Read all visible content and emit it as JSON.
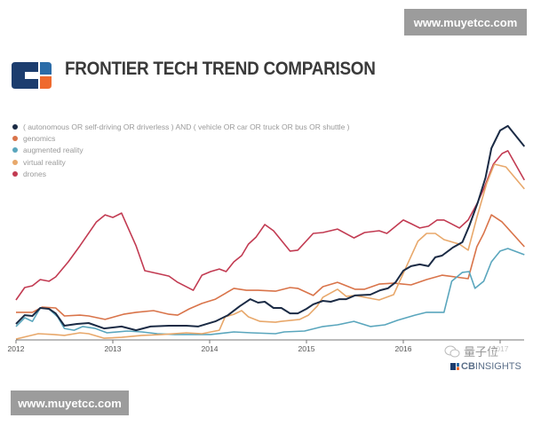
{
  "watermark_top": "www.muyetcc.com",
  "watermark_bottom": "www.muyetcc.com",
  "watermark_cn": "量子位",
  "brand": {
    "cb": "CB",
    "insights": "INSIGHTS"
  },
  "chart_data": {
    "type": "line",
    "title": "FRONTIER TECH TREND COMPARISON",
    "xlabel": "",
    "ylabel": "",
    "xlim": [
      2012,
      2017.25
    ],
    "ylim": [
      0,
      100
    ],
    "x_ticks": [
      "2012",
      "2013",
      "2014",
      "2015",
      "2016",
      "2017"
    ],
    "grid": false,
    "legend_position": "top-left",
    "series": [
      {
        "name": "( autonomous OR self-driving OR driverless ) AND ( vehicle OR car OR truck OR bus OR shuttle )",
        "color": "#1b2b45",
        "points": [
          [
            2012.0,
            7.4
          ],
          [
            2012.09,
            11.5
          ],
          [
            2012.17,
            11.1
          ],
          [
            2012.25,
            14.8
          ],
          [
            2012.34,
            14.4
          ],
          [
            2012.41,
            12.3
          ],
          [
            2012.5,
            6.6
          ],
          [
            2012.63,
            7.4
          ],
          [
            2012.75,
            7.8
          ],
          [
            2012.91,
            5.3
          ],
          [
            2013.09,
            6.2
          ],
          [
            2013.24,
            4.5
          ],
          [
            2013.39,
            6.2
          ],
          [
            2013.58,
            6.6
          ],
          [
            2013.76,
            6.6
          ],
          [
            2013.88,
            6.2
          ],
          [
            2014.06,
            8.6
          ],
          [
            2014.19,
            11.5
          ],
          [
            2014.31,
            15.6
          ],
          [
            2014.42,
            18.9
          ],
          [
            2014.5,
            17.3
          ],
          [
            2014.57,
            17.7
          ],
          [
            2014.66,
            14.8
          ],
          [
            2014.74,
            14.8
          ],
          [
            2014.83,
            12.3
          ],
          [
            2014.91,
            12.3
          ],
          [
            2015.0,
            14.4
          ],
          [
            2015.07,
            16.5
          ],
          [
            2015.17,
            18.1
          ],
          [
            2015.25,
            17.7
          ],
          [
            2015.34,
            18.9
          ],
          [
            2015.41,
            18.9
          ],
          [
            2015.5,
            20.6
          ],
          [
            2015.66,
            21.0
          ],
          [
            2015.76,
            23.0
          ],
          [
            2015.84,
            23.9
          ],
          [
            2015.92,
            26.7
          ],
          [
            2016.0,
            32.1
          ],
          [
            2016.08,
            34.2
          ],
          [
            2016.17,
            35.0
          ],
          [
            2016.26,
            34.2
          ],
          [
            2016.33,
            38.3
          ],
          [
            2016.4,
            39.1
          ],
          [
            2016.51,
            42.8
          ],
          [
            2016.61,
            45.3
          ],
          [
            2016.68,
            52.7
          ],
          [
            2016.77,
            63.8
          ],
          [
            2016.85,
            75.3
          ],
          [
            2016.91,
            88.9
          ],
          [
            2017.0,
            97.1
          ],
          [
            2017.08,
            99.2
          ],
          [
            2017.25,
            89.7
          ]
        ]
      },
      {
        "name": "genomics",
        "color": "#d9744a",
        "points": [
          [
            2012.0,
            12.8
          ],
          [
            2012.17,
            12.8
          ],
          [
            2012.27,
            15.2
          ],
          [
            2012.41,
            14.8
          ],
          [
            2012.5,
            11.1
          ],
          [
            2012.66,
            11.5
          ],
          [
            2012.75,
            11.1
          ],
          [
            2012.92,
            9.5
          ],
          [
            2013.11,
            11.9
          ],
          [
            2013.24,
            12.8
          ],
          [
            2013.42,
            13.6
          ],
          [
            2013.58,
            11.9
          ],
          [
            2013.67,
            11.5
          ],
          [
            2013.79,
            14.4
          ],
          [
            2013.92,
            16.9
          ],
          [
            2014.06,
            18.9
          ],
          [
            2014.25,
            23.9
          ],
          [
            2014.38,
            23.0
          ],
          [
            2014.5,
            23.0
          ],
          [
            2014.68,
            22.6
          ],
          [
            2014.83,
            24.3
          ],
          [
            2014.91,
            23.9
          ],
          [
            2015.07,
            20.6
          ],
          [
            2015.17,
            24.7
          ],
          [
            2015.32,
            26.7
          ],
          [
            2015.5,
            23.5
          ],
          [
            2015.6,
            23.5
          ],
          [
            2015.75,
            25.9
          ],
          [
            2015.9,
            26.3
          ],
          [
            2016.08,
            25.5
          ],
          [
            2016.24,
            28.0
          ],
          [
            2016.4,
            30.0
          ],
          [
            2016.67,
            28.4
          ],
          [
            2016.76,
            43.2
          ],
          [
            2016.83,
            49.4
          ],
          [
            2016.91,
            58.0
          ],
          [
            2017.02,
            54.7
          ],
          [
            2017.25,
            43.2
          ]
        ]
      },
      {
        "name": "augmented reality",
        "color": "#5aa6bd",
        "points": [
          [
            2012.0,
            6.2
          ],
          [
            2012.09,
            10.3
          ],
          [
            2012.17,
            8.6
          ],
          [
            2012.25,
            14.8
          ],
          [
            2012.34,
            14.4
          ],
          [
            2012.43,
            10.7
          ],
          [
            2012.5,
            5.3
          ],
          [
            2012.6,
            4.5
          ],
          [
            2012.69,
            6.2
          ],
          [
            2012.82,
            5.3
          ],
          [
            2012.94,
            3.3
          ],
          [
            2013.15,
            4.1
          ],
          [
            2013.3,
            3.7
          ],
          [
            2013.46,
            2.9
          ],
          [
            2013.64,
            2.5
          ],
          [
            2013.83,
            2.5
          ],
          [
            2014.01,
            2.5
          ],
          [
            2014.25,
            3.7
          ],
          [
            2014.43,
            3.3
          ],
          [
            2014.68,
            2.9
          ],
          [
            2014.77,
            3.7
          ],
          [
            2014.98,
            4.1
          ],
          [
            2015.17,
            6.2
          ],
          [
            2015.32,
            7.0
          ],
          [
            2015.49,
            8.6
          ],
          [
            2015.66,
            6.2
          ],
          [
            2015.81,
            7.0
          ],
          [
            2015.94,
            9.1
          ],
          [
            2016.12,
            11.5
          ],
          [
            2016.24,
            12.8
          ],
          [
            2016.42,
            12.8
          ],
          [
            2016.5,
            27.2
          ],
          [
            2016.61,
            31.3
          ],
          [
            2016.68,
            31.7
          ],
          [
            2016.74,
            23.9
          ],
          [
            2016.83,
            27.2
          ],
          [
            2016.91,
            36.2
          ],
          [
            2017.0,
            41.2
          ],
          [
            2017.08,
            42.4
          ],
          [
            2017.25,
            39.5
          ]
        ]
      },
      {
        "name": "virtual reality",
        "color": "#e8a86b",
        "points": [
          [
            2012.0,
            0.4
          ],
          [
            2012.23,
            2.9
          ],
          [
            2012.39,
            2.5
          ],
          [
            2012.5,
            2.1
          ],
          [
            2012.66,
            3.3
          ],
          [
            2012.75,
            2.9
          ],
          [
            2012.91,
            0.8
          ],
          [
            2013.09,
            1.2
          ],
          [
            2013.3,
            2.1
          ],
          [
            2013.51,
            2.5
          ],
          [
            2013.76,
            3.3
          ],
          [
            2013.92,
            2.9
          ],
          [
            2014.1,
            4.5
          ],
          [
            2014.16,
            10.7
          ],
          [
            2014.25,
            11.9
          ],
          [
            2014.33,
            13.6
          ],
          [
            2014.4,
            10.7
          ],
          [
            2014.52,
            8.6
          ],
          [
            2014.68,
            8.2
          ],
          [
            2014.74,
            8.6
          ],
          [
            2014.93,
            9.5
          ],
          [
            2015.02,
            11.5
          ],
          [
            2015.11,
            15.6
          ],
          [
            2015.17,
            19.8
          ],
          [
            2015.32,
            23.5
          ],
          [
            2015.41,
            20.2
          ],
          [
            2015.5,
            20.6
          ],
          [
            2015.75,
            18.5
          ],
          [
            2015.9,
            21.0
          ],
          [
            2016.0,
            30.9
          ],
          [
            2016.15,
            45.7
          ],
          [
            2016.24,
            49.4
          ],
          [
            2016.33,
            49.4
          ],
          [
            2016.42,
            46.5
          ],
          [
            2016.58,
            44.4
          ],
          [
            2016.67,
            41.6
          ],
          [
            2016.76,
            56.8
          ],
          [
            2016.86,
            72.4
          ],
          [
            2016.94,
            81.5
          ],
          [
            2017.06,
            80.2
          ],
          [
            2017.25,
            70.0
          ]
        ]
      },
      {
        "name": "drones",
        "color": "#c23b52",
        "points": [
          [
            2012.0,
            18.5
          ],
          [
            2012.09,
            24.3
          ],
          [
            2012.17,
            25.1
          ],
          [
            2012.25,
            28.0
          ],
          [
            2012.34,
            27.2
          ],
          [
            2012.41,
            29.2
          ],
          [
            2012.54,
            36.2
          ],
          [
            2012.66,
            43.6
          ],
          [
            2012.83,
            54.7
          ],
          [
            2012.92,
            58.0
          ],
          [
            2013.0,
            56.8
          ],
          [
            2013.09,
            58.8
          ],
          [
            2013.24,
            43.6
          ],
          [
            2013.33,
            32.1
          ],
          [
            2013.49,
            30.5
          ],
          [
            2013.58,
            29.6
          ],
          [
            2013.67,
            26.7
          ],
          [
            2013.83,
            23.0
          ],
          [
            2013.92,
            30.0
          ],
          [
            2014.01,
            31.7
          ],
          [
            2014.1,
            32.9
          ],
          [
            2014.17,
            31.7
          ],
          [
            2014.25,
            36.2
          ],
          [
            2014.33,
            39.1
          ],
          [
            2014.4,
            44.4
          ],
          [
            2014.48,
            47.7
          ],
          [
            2014.57,
            53.5
          ],
          [
            2014.66,
            50.6
          ],
          [
            2014.83,
            41.2
          ],
          [
            2014.91,
            41.6
          ],
          [
            2015.07,
            49.4
          ],
          [
            2015.17,
            49.8
          ],
          [
            2015.32,
            51.4
          ],
          [
            2015.49,
            47.3
          ],
          [
            2015.6,
            49.8
          ],
          [
            2015.75,
            50.6
          ],
          [
            2015.83,
            49.4
          ],
          [
            2016.0,
            55.6
          ],
          [
            2016.08,
            53.9
          ],
          [
            2016.17,
            51.9
          ],
          [
            2016.26,
            52.7
          ],
          [
            2016.35,
            55.6
          ],
          [
            2016.42,
            55.6
          ],
          [
            2016.58,
            51.9
          ],
          [
            2016.67,
            55.6
          ],
          [
            2016.76,
            63.0
          ],
          [
            2016.83,
            70.0
          ],
          [
            2016.93,
            81.5
          ],
          [
            2017.02,
            86.4
          ],
          [
            2017.08,
            87.7
          ],
          [
            2017.25,
            74.1
          ]
        ]
      }
    ]
  }
}
